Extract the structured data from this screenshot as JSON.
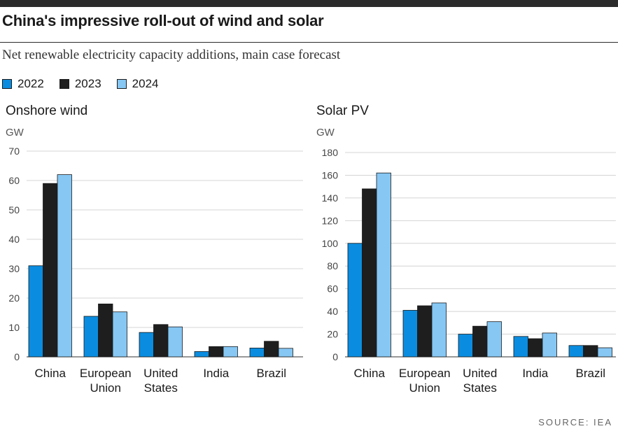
{
  "header": {
    "title": "China's impressive roll-out of wind and solar",
    "subtitle": "Net renewable electricity capacity additions, main case forecast"
  },
  "legend": [
    {
      "label": "2022",
      "color": "#0a8de0"
    },
    {
      "label": "2023",
      "color": "#1e1e1e"
    },
    {
      "label": "2024",
      "color": "#86c7f4"
    }
  ],
  "source": "SOURCE: IEA",
  "chart_data": [
    {
      "type": "bar",
      "title": "Onshore wind",
      "ylabel": "GW",
      "ylim": [
        0,
        70
      ],
      "yticks": [
        0,
        10,
        20,
        30,
        40,
        50,
        60,
        70
      ],
      "categories": [
        [
          "China"
        ],
        [
          "European",
          "Union"
        ],
        [
          "United",
          "States"
        ],
        [
          "India"
        ],
        [
          "Brazil"
        ]
      ],
      "series": [
        {
          "name": "2022",
          "values": [
            31,
            13.8,
            8.3,
            1.8,
            3
          ]
        },
        {
          "name": "2023",
          "values": [
            59,
            18,
            11,
            3.5,
            5.3
          ]
        },
        {
          "name": "2024",
          "values": [
            62,
            15.3,
            10.2,
            3.5,
            2.9
          ]
        }
      ]
    },
    {
      "type": "bar",
      "title": "Solar PV",
      "ylabel": "GW",
      "ylim": [
        0,
        180
      ],
      "yticks": [
        0,
        20,
        40,
        60,
        80,
        100,
        120,
        140,
        160,
        180
      ],
      "categories": [
        [
          "China"
        ],
        [
          "European",
          "Union"
        ],
        [
          "United",
          "States"
        ],
        [
          "India"
        ],
        [
          "Brazil"
        ]
      ],
      "series": [
        {
          "name": "2022",
          "values": [
            100,
            41,
            20,
            18,
            10
          ]
        },
        {
          "name": "2023",
          "values": [
            148,
            45,
            27,
            16,
            10
          ]
        },
        {
          "name": "2024",
          "values": [
            162,
            47.5,
            31,
            21,
            8
          ]
        }
      ]
    }
  ]
}
